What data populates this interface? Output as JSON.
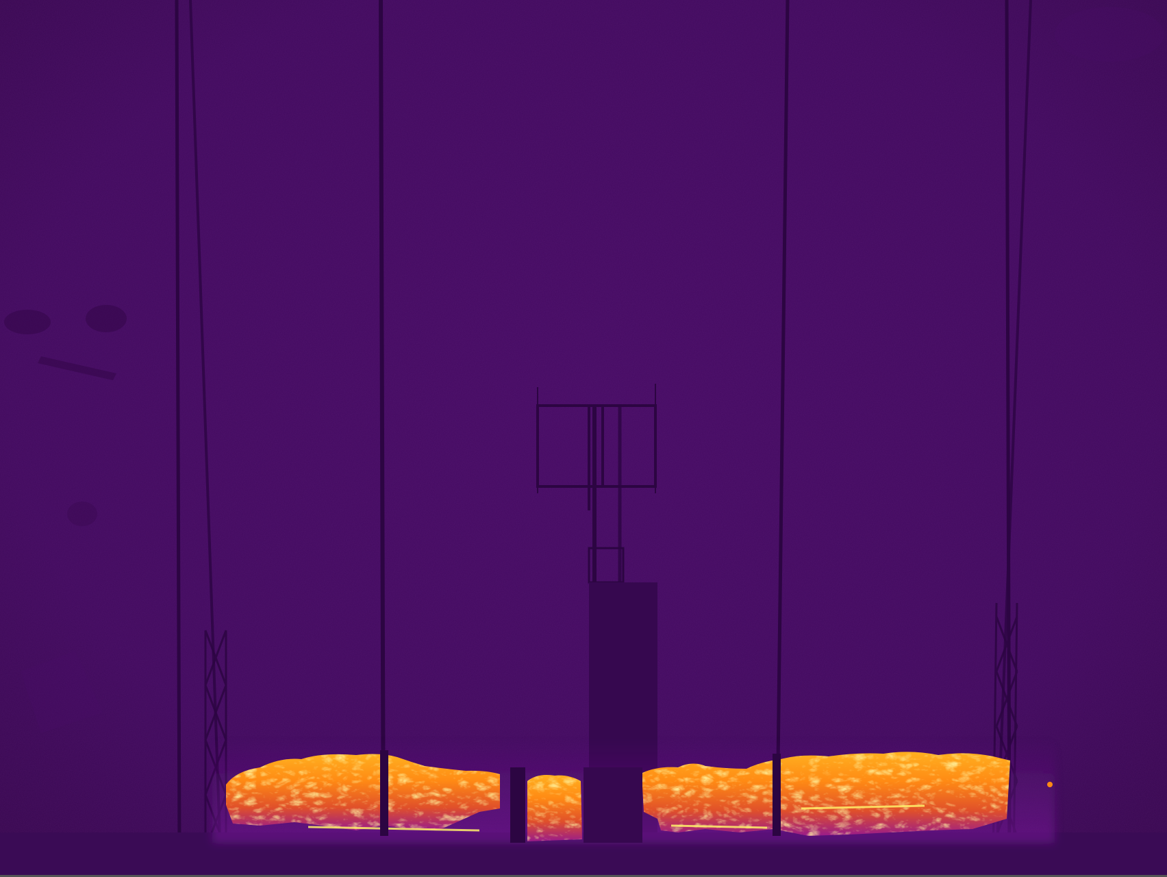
{
  "image": {
    "kind": "thermal-camera-frame",
    "palette": {
      "background": "#420a60",
      "background_edge": "#38084f",
      "structure": "#2c0542",
      "structure_light": "#4a1470",
      "heat_low": "#8a1aa0",
      "heat_mid": "#e0402c",
      "heat_high": "#ff9a10",
      "heat_peak": "#ffe04a",
      "floor": "#3a0b55"
    },
    "objects": [
      "scaffold-tower-left",
      "scaffold-tower-right",
      "vertical-poles",
      "center-frame",
      "fire-line"
    ]
  }
}
